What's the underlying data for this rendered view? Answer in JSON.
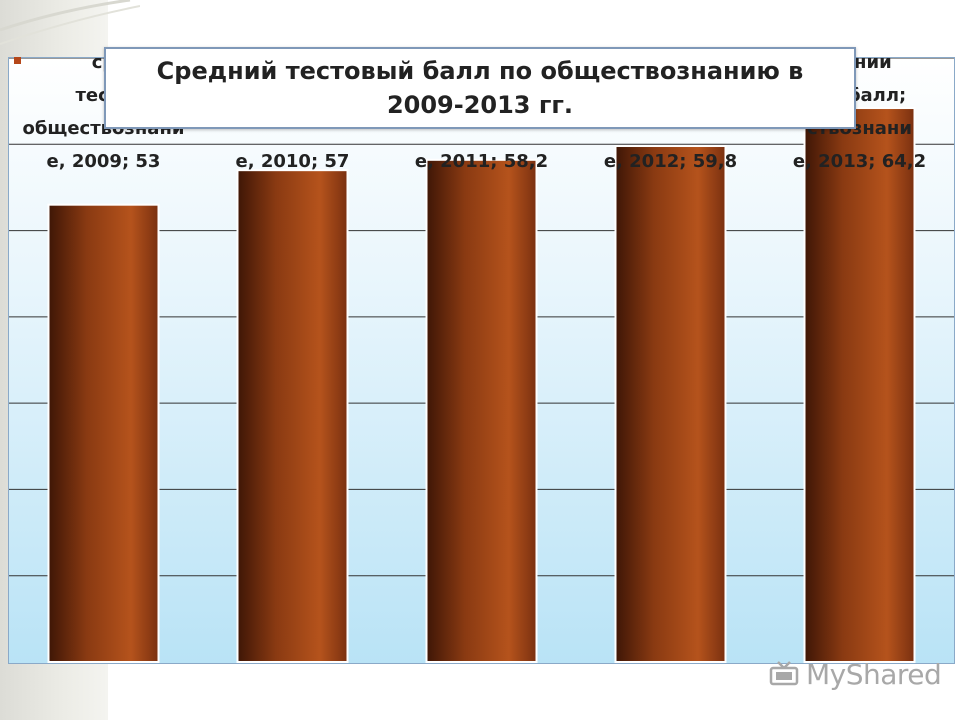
{
  "chart_data": {
    "type": "bar",
    "title": "Средний тестовый балл по  обществознанию в 2009-2013 гг.",
    "categories": [
      "2009",
      "2010",
      "2011",
      "2012",
      "2013"
    ],
    "values": [
      53,
      57,
      58.2,
      59.8,
      64.2
    ],
    "data_labels": [
      [
        "ср",
        "тесто",
        "обществознани",
        "е, 2009; 53"
      ],
      [
        "е, 2010; 57"
      ],
      [
        "е, 2011; 58,2"
      ],
      [
        "е, 2012; 59,8"
      ],
      [
        "едний",
        "ый балл;",
        "ствознани",
        "е, 2013; 64,2"
      ]
    ],
    "ylim": [
      0,
      70
    ],
    "grid": true,
    "legend": "none",
    "colors": {
      "bar_dark": "#4a1c08",
      "bar_light": "#b5531c",
      "background_bottom": "#b9e3f6"
    }
  },
  "watermark": {
    "text": "MyShared",
    "icon": "projector-icon"
  }
}
